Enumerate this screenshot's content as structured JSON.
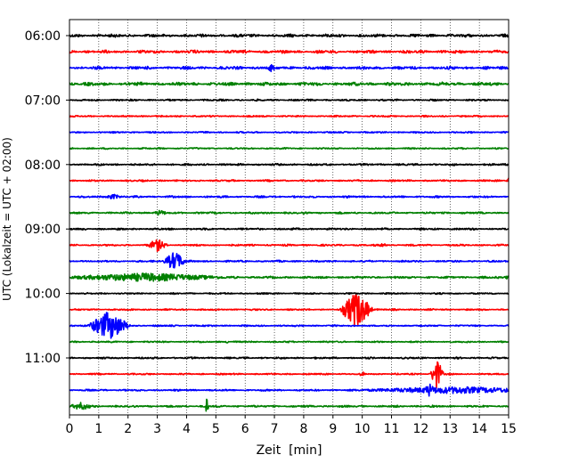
{
  "chart_data": {
    "type": "line",
    "title": "",
    "xlabel": "Zeit  [min]",
    "ylabel": "UTC (Lokalzeit = UTC + 02:00)",
    "xlim": [
      0,
      15
    ],
    "x_ticks": [
      "0",
      "1",
      "2",
      "3",
      "4",
      "5",
      "6",
      "7",
      "8",
      "9",
      "10",
      "11",
      "12",
      "13",
      "14",
      "15"
    ],
    "y_ticks": [
      "06:00",
      "07:00",
      "08:00",
      "09:00",
      "10:00",
      "11:00"
    ],
    "grid": "vertical dotted",
    "trace_colors": [
      "#000000",
      "#ff0000",
      "#0000ff",
      "#008000"
    ],
    "traces": [
      {
        "start": "06:00",
        "color": "#000000",
        "noise": 0.85,
        "events": []
      },
      {
        "start": "06:15",
        "color": "#ff0000",
        "noise": 0.85,
        "events": []
      },
      {
        "start": "06:30",
        "color": "#0000ff",
        "noise": 0.85,
        "events": [
          {
            "t": 6.9,
            "amp": 2.2,
            "dur": 0.2
          }
        ]
      },
      {
        "start": "06:45",
        "color": "#008000",
        "noise": 0.95,
        "events": []
      },
      {
        "start": "07:00",
        "color": "#000000",
        "noise": 0.5,
        "events": []
      },
      {
        "start": "07:15",
        "color": "#ff0000",
        "noise": 0.45,
        "events": []
      },
      {
        "start": "07:30",
        "color": "#0000ff",
        "noise": 0.45,
        "events": []
      },
      {
        "start": "07:45",
        "color": "#008000",
        "noise": 0.45,
        "events": []
      },
      {
        "start": "08:00",
        "color": "#000000",
        "noise": 0.55,
        "events": []
      },
      {
        "start": "08:15",
        "color": "#ff0000",
        "noise": 0.5,
        "events": [
          {
            "t": 15.0,
            "amp": 1.5,
            "dur": 0.1
          }
        ]
      },
      {
        "start": "08:30",
        "color": "#0000ff",
        "noise": 0.55,
        "events": [
          {
            "t": 1.5,
            "amp": 1.3,
            "dur": 0.4
          }
        ]
      },
      {
        "start": "08:45",
        "color": "#008000",
        "noise": 0.55,
        "events": [
          {
            "t": 3.1,
            "amp": 1.5,
            "dur": 0.3
          }
        ]
      },
      {
        "start": "09:00",
        "color": "#000000",
        "noise": 0.55,
        "events": []
      },
      {
        "start": "09:15",
        "color": "#ff0000",
        "noise": 0.5,
        "events": [
          {
            "t": 3.0,
            "amp": 3.2,
            "dur": 0.4
          },
          {
            "t": 10.7,
            "amp": 1.0,
            "dur": 0.2
          }
        ]
      },
      {
        "start": "09:30",
        "color": "#0000ff",
        "noise": 0.5,
        "events": [
          {
            "t": 3.6,
            "amp": 5.0,
            "dur": 0.45
          }
        ]
      },
      {
        "start": "09:45",
        "color": "#008000",
        "noise": 0.6,
        "events": [
          {
            "t": 2.6,
            "amp": 2.2,
            "dur": 3.6
          },
          {
            "t": 15.0,
            "amp": 1.2,
            "dur": 0.2
          }
        ]
      },
      {
        "start": "10:00",
        "color": "#000000",
        "noise": 0.45,
        "events": []
      },
      {
        "start": "10:15",
        "color": "#ff0000",
        "noise": 0.45,
        "events": [
          {
            "t": 9.8,
            "amp": 10.0,
            "dur": 0.6
          }
        ]
      },
      {
        "start": "10:30",
        "color": "#0000ff",
        "noise": 0.45,
        "events": [
          {
            "t": 1.35,
            "amp": 7.5,
            "dur": 0.8
          }
        ]
      },
      {
        "start": "10:45",
        "color": "#008000",
        "noise": 0.45,
        "events": [
          {
            "t": 5.4,
            "amp": 1.0,
            "dur": 0.1
          }
        ]
      },
      {
        "start": "11:00",
        "color": "#000000",
        "noise": 0.5,
        "events": []
      },
      {
        "start": "11:15",
        "color": "#ff0000",
        "noise": 0.45,
        "events": [
          {
            "t": 12.55,
            "amp": 8.0,
            "dur": 0.25
          },
          {
            "t": 10.0,
            "amp": 1.3,
            "dur": 0.15
          }
        ]
      },
      {
        "start": "11:30",
        "color": "#0000ff",
        "noise": 0.5,
        "events": [
          {
            "t": 12.3,
            "amp": 3.5,
            "dur": 0.25
          },
          {
            "t": 13.2,
            "amp": 1.8,
            "dur": 4.2
          }
        ]
      },
      {
        "start": "11:45",
        "color": "#008000",
        "noise": 0.55,
        "events": [
          {
            "t": 0.4,
            "amp": 2.0,
            "dur": 0.5
          },
          {
            "t": 4.7,
            "amp": 6.0,
            "dur": 0.06
          }
        ]
      }
    ]
  }
}
